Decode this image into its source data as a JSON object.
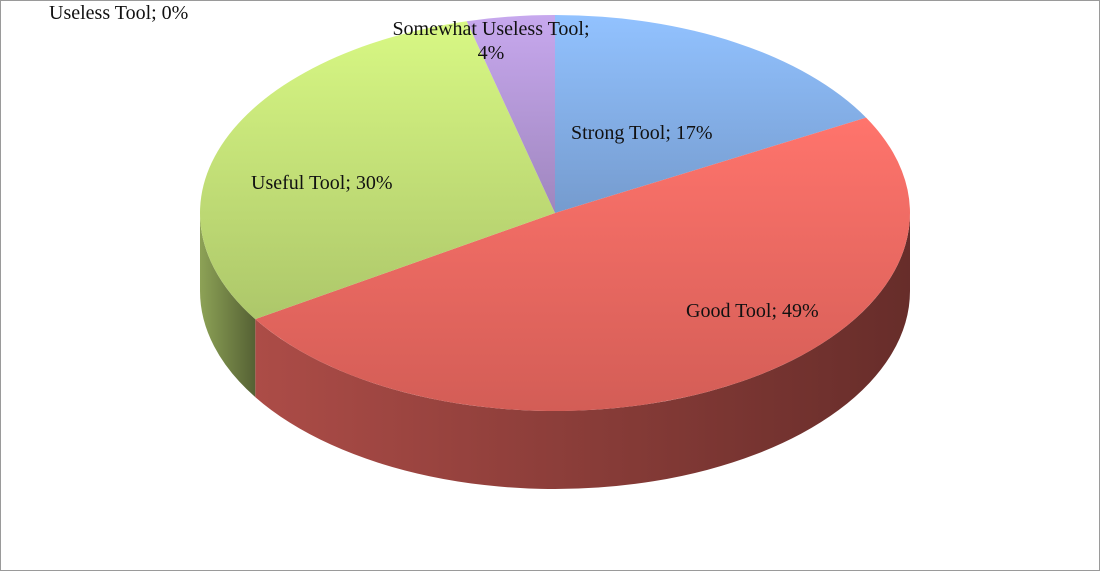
{
  "chart_data": {
    "type": "pie3d",
    "values": [
      17,
      49,
      30,
      0,
      4
    ],
    "value_labels": [
      "Strong Tool; 17%",
      "Good Tool; 49%",
      "Useful Tool; 30%",
      "Useless Tool; 0%",
      "Somewhat Useless Tool; 4%"
    ],
    "colors": [
      "#7fa9e0",
      "#e5655e",
      "#bcd873",
      "#b8c7e8",
      "#ad92cf"
    ]
  }
}
